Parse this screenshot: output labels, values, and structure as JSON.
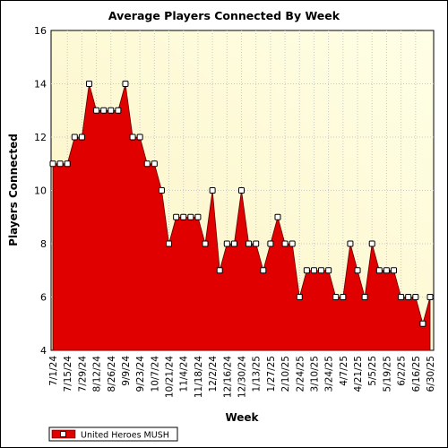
{
  "chart_data": {
    "type": "area",
    "title": "Average Players Connected By Week",
    "xlabel": "Week",
    "ylabel": "Players Connected",
    "ylim": [
      4,
      16
    ],
    "yticks": [
      4,
      6,
      8,
      10,
      12,
      14,
      16
    ],
    "grid": true,
    "legend_position": "bottom-left",
    "x_tick_labels": [
      "7/1/24",
      "7/15/24",
      "7/29/24",
      "8/12/24",
      "8/26/24",
      "9/9/24",
      "9/23/24",
      "10/7/24",
      "10/21/24",
      "11/4/24",
      "11/18/24",
      "12/2/24",
      "12/16/24",
      "12/30/24",
      "1/13/25",
      "1/27/25",
      "2/10/25",
      "2/24/25",
      "3/10/25",
      "3/24/25",
      "4/7/25",
      "4/21/25",
      "5/5/25",
      "5/19/25",
      "6/2/25",
      "6/16/25",
      "6/30/25"
    ],
    "series": [
      {
        "name": "United Heroes MUSH",
        "color": "#e00000",
        "values": [
          11,
          11,
          11,
          12,
          12,
          14,
          13,
          13,
          13,
          13,
          14,
          12,
          12,
          11,
          11,
          10,
          8,
          9,
          9,
          9,
          9,
          8,
          10,
          7,
          8,
          8,
          10,
          8,
          8,
          7,
          8,
          9,
          8,
          8,
          6,
          7,
          7,
          7,
          7,
          6,
          6,
          8,
          7,
          6,
          8,
          7,
          7,
          7,
          6,
          6,
          6,
          5,
          6
        ]
      }
    ]
  }
}
